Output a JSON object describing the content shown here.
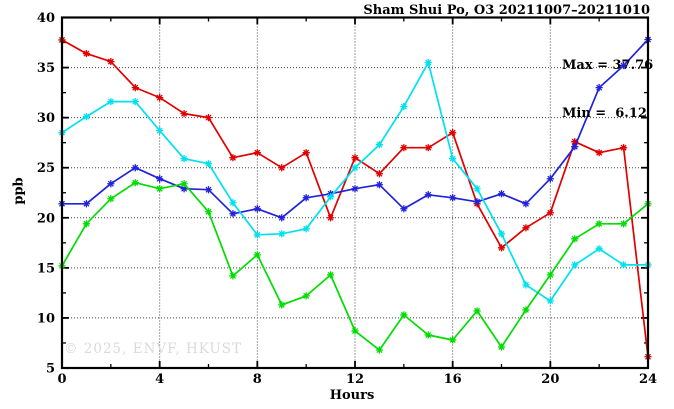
{
  "header": {
    "title": "Sham Shui Po, O3 20211007–20211010"
  },
  "annotation": {
    "max_label": "Max = 37.76",
    "min_label": "Min =  6.12"
  },
  "watermark": "© 2025, ENVF, HKUST",
  "axes": {
    "xlabel": "Hours",
    "ylabel": "ppb"
  },
  "colors": {
    "red": "#e00000",
    "blue": "#2222dd",
    "cyan": "#00e1ee",
    "green": "#00dd00",
    "grid": "#444444",
    "axis": "#000000",
    "watermark": "#dadada",
    "background": "#ffffff"
  },
  "chart_data": {
    "type": "line",
    "title": "Sham Shui Po, O3 20211007–20211010",
    "xlabel": "Hours",
    "ylabel": "ppb",
    "xlim": [
      0,
      24
    ],
    "ylim": [
      5,
      40
    ],
    "x_major_ticks": [
      0,
      4,
      8,
      12,
      16,
      20,
      24
    ],
    "x_minor_step": 2,
    "y_major_ticks": [
      5,
      10,
      15,
      20,
      25,
      30,
      35,
      40
    ],
    "y_minor_step": 2.5,
    "grid": "dotted lines at major ticks, full frame border, inward mirrored ticks",
    "legend": "none",
    "marker": "asterisk",
    "max": 37.76,
    "min": 6.12,
    "x": [
      0,
      1,
      2,
      3,
      4,
      5,
      6,
      7,
      8,
      9,
      10,
      11,
      12,
      13,
      14,
      15,
      16,
      17,
      18,
      19,
      20,
      21,
      22,
      23,
      24
    ],
    "series": [
      {
        "name": "series-red",
        "color": "#e00000",
        "values": [
          37.76,
          36.4,
          35.6,
          33.0,
          32.0,
          30.4,
          30.0,
          26.0,
          26.5,
          25.0,
          26.5,
          20.0,
          26.0,
          24.4,
          27.0,
          27.0,
          28.5,
          21.4,
          17.0,
          19.0,
          20.5,
          27.6,
          26.5,
          27.0,
          6.12
        ]
      },
      {
        "name": "series-blue",
        "color": "#2222dd",
        "values": [
          21.4,
          21.4,
          23.4,
          25.0,
          23.9,
          22.9,
          22.8,
          20.4,
          20.9,
          20.0,
          22.0,
          22.4,
          22.9,
          23.3,
          20.9,
          22.3,
          22.0,
          21.6,
          22.4,
          21.4,
          23.9,
          27.1,
          33.0,
          35.2,
          37.8
        ]
      },
      {
        "name": "series-cyan",
        "color": "#00e1ee",
        "values": [
          28.5,
          30.1,
          31.6,
          31.6,
          28.7,
          25.9,
          25.4,
          21.5,
          18.3,
          18.4,
          18.9,
          22.1,
          25.0,
          27.3,
          31.1,
          35.5,
          25.9,
          22.9,
          18.4,
          13.3,
          11.7,
          15.3,
          16.9,
          15.3,
          15.3
        ]
      },
      {
        "name": "series-green",
        "color": "#00dd00",
        "values": [
          15.2,
          19.4,
          21.9,
          23.5,
          22.9,
          23.4,
          20.6,
          14.2,
          16.3,
          11.3,
          12.2,
          14.3,
          8.7,
          6.8,
          10.3,
          8.3,
          7.8,
          10.7,
          7.1,
          10.8,
          14.3,
          17.9,
          19.4,
          19.4,
          21.4
        ]
      }
    ]
  }
}
